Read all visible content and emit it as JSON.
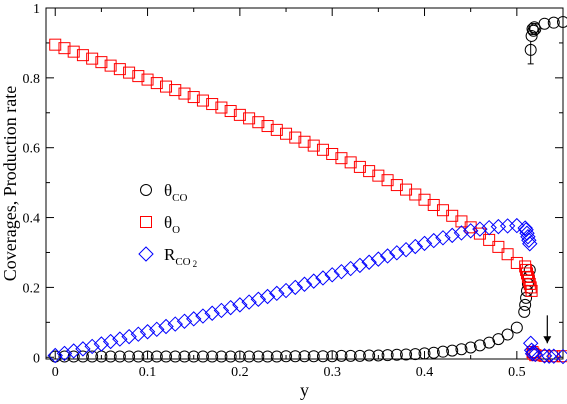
{
  "chart_data": {
    "type": "scatter",
    "xlabel": "y",
    "ylabel": "Coverages, Production rate",
    "xlim": [
      -0.01,
      0.55
    ],
    "ylim": [
      -0.005,
      1.0
    ],
    "x_ticks": [
      "0",
      "0.1",
      "0.2",
      "0.3",
      "0.4",
      "0.5"
    ],
    "x_tick_values": [
      0,
      0.1,
      0.2,
      0.3,
      0.4,
      0.5
    ],
    "y_ticks": [
      "0",
      "0.2",
      "0.4",
      "0.6",
      "0.8",
      "1"
    ],
    "y_tick_values": [
      0,
      0.2,
      0.4,
      0.6,
      0.8,
      1.0
    ],
    "legend": {
      "placement": "center-left",
      "entries": [
        {
          "symbol": "circle",
          "color": "#000000",
          "base": "θ",
          "sub": "CO"
        },
        {
          "symbol": "square",
          "color": "#ff0000",
          "base": "θ",
          "sub": "O"
        },
        {
          "symbol": "diamond",
          "color": "#0000ff",
          "base": "R",
          "sub": "CO 2"
        }
      ]
    },
    "annotation": {
      "type": "arrow-down",
      "x": 0.533,
      "y_from": 0.12,
      "y_to": 0.04
    },
    "series": [
      {
        "symbol": "circle",
        "color": "#000000",
        "points": [
          [
            0.0,
            0.002
          ],
          [
            0.01,
            0.002
          ],
          [
            0.02,
            0.002
          ],
          [
            0.03,
            0.002
          ],
          [
            0.04,
            0.002
          ],
          [
            0.05,
            0.002
          ],
          [
            0.06,
            0.002
          ],
          [
            0.07,
            0.002
          ],
          [
            0.08,
            0.002
          ],
          [
            0.09,
            0.002
          ],
          [
            0.1,
            0.002
          ],
          [
            0.11,
            0.002
          ],
          [
            0.12,
            0.002
          ],
          [
            0.13,
            0.002
          ],
          [
            0.14,
            0.002
          ],
          [
            0.15,
            0.002
          ],
          [
            0.16,
            0.002
          ],
          [
            0.17,
            0.002
          ],
          [
            0.18,
            0.002
          ],
          [
            0.19,
            0.002
          ],
          [
            0.2,
            0.002
          ],
          [
            0.21,
            0.002
          ],
          [
            0.22,
            0.002
          ],
          [
            0.23,
            0.002
          ],
          [
            0.24,
            0.002
          ],
          [
            0.25,
            0.003
          ],
          [
            0.26,
            0.003
          ],
          [
            0.27,
            0.003
          ],
          [
            0.28,
            0.003
          ],
          [
            0.29,
            0.003
          ],
          [
            0.3,
            0.003
          ],
          [
            0.31,
            0.004
          ],
          [
            0.32,
            0.004
          ],
          [
            0.33,
            0.004
          ],
          [
            0.34,
            0.005
          ],
          [
            0.35,
            0.005
          ],
          [
            0.36,
            0.006
          ],
          [
            0.37,
            0.007
          ],
          [
            0.38,
            0.008
          ],
          [
            0.39,
            0.009
          ],
          [
            0.4,
            0.011
          ],
          [
            0.41,
            0.013
          ],
          [
            0.42,
            0.016
          ],
          [
            0.43,
            0.019
          ],
          [
            0.44,
            0.023
          ],
          [
            0.45,
            0.028
          ],
          [
            0.46,
            0.034
          ],
          [
            0.47,
            0.042
          ],
          [
            0.48,
            0.052
          ],
          [
            0.49,
            0.065
          ],
          [
            0.5,
            0.085
          ],
          [
            0.508,
            0.13
          ],
          [
            0.509,
            0.15
          ],
          [
            0.51,
            0.17
          ],
          [
            0.511,
            0.19
          ],
          [
            0.512,
            0.21
          ],
          [
            0.513,
            0.23
          ],
          [
            0.514,
            0.25
          ],
          [
            0.515,
            0.88
          ],
          [
            0.516,
            0.92
          ],
          [
            0.517,
            0.94
          ],
          [
            0.518,
            0.935
          ],
          [
            0.519,
            0.945
          ],
          [
            0.52,
            0.94
          ],
          [
            0.53,
            0.955
          ],
          [
            0.54,
            0.958
          ],
          [
            0.55,
            0.96
          ]
        ],
        "error_bar": {
          "x": 0.515,
          "y": 0.88,
          "low": 0.84,
          "high": 0.905
        }
      },
      {
        "symbol": "square",
        "color": "#ff0000",
        "points": [
          [
            0.0,
            0.895
          ],
          [
            0.01,
            0.885
          ],
          [
            0.02,
            0.875
          ],
          [
            0.03,
            0.865
          ],
          [
            0.04,
            0.855
          ],
          [
            0.05,
            0.845
          ],
          [
            0.06,
            0.835
          ],
          [
            0.07,
            0.825
          ],
          [
            0.08,
            0.815
          ],
          [
            0.09,
            0.805
          ],
          [
            0.1,
            0.795
          ],
          [
            0.11,
            0.785
          ],
          [
            0.12,
            0.775
          ],
          [
            0.13,
            0.765
          ],
          [
            0.14,
            0.755
          ],
          [
            0.15,
            0.745
          ],
          [
            0.16,
            0.735
          ],
          [
            0.17,
            0.725
          ],
          [
            0.18,
            0.715
          ],
          [
            0.19,
            0.705
          ],
          [
            0.2,
            0.694
          ],
          [
            0.21,
            0.684
          ],
          [
            0.22,
            0.673
          ],
          [
            0.23,
            0.662
          ],
          [
            0.24,
            0.651
          ],
          [
            0.25,
            0.64
          ],
          [
            0.26,
            0.629
          ],
          [
            0.27,
            0.617
          ],
          [
            0.28,
            0.606
          ],
          [
            0.29,
            0.594
          ],
          [
            0.3,
            0.582
          ],
          [
            0.31,
            0.57
          ],
          [
            0.32,
            0.558
          ],
          [
            0.33,
            0.545
          ],
          [
            0.34,
            0.533
          ],
          [
            0.35,
            0.52
          ],
          [
            0.36,
            0.507
          ],
          [
            0.37,
            0.493
          ],
          [
            0.38,
            0.48
          ],
          [
            0.39,
            0.466
          ],
          [
            0.4,
            0.451
          ],
          [
            0.41,
            0.436
          ],
          [
            0.42,
            0.421
          ],
          [
            0.43,
            0.405
          ],
          [
            0.44,
            0.389
          ],
          [
            0.45,
            0.372
          ],
          [
            0.46,
            0.354
          ],
          [
            0.47,
            0.336
          ],
          [
            0.48,
            0.316
          ],
          [
            0.49,
            0.295
          ],
          [
            0.5,
            0.27
          ],
          [
            0.509,
            0.26
          ],
          [
            0.51,
            0.25
          ],
          [
            0.511,
            0.24
          ],
          [
            0.512,
            0.23
          ],
          [
            0.513,
            0.22
          ],
          [
            0.514,
            0.21
          ],
          [
            0.515,
            0.2
          ],
          [
            0.516,
            0.19
          ],
          [
            0.517,
            0.015
          ],
          [
            0.518,
            0.01
          ],
          [
            0.52,
            0.006
          ],
          [
            0.53,
            0.004
          ],
          [
            0.54,
            0.003
          ],
          [
            0.55,
            0.003
          ]
        ]
      },
      {
        "symbol": "diamond",
        "color": "#0000ff",
        "points": [
          [
            0.0,
            0.005
          ],
          [
            0.01,
            0.011
          ],
          [
            0.02,
            0.018
          ],
          [
            0.03,
            0.024
          ],
          [
            0.04,
            0.031
          ],
          [
            0.05,
            0.038
          ],
          [
            0.06,
            0.045
          ],
          [
            0.07,
            0.052
          ],
          [
            0.08,
            0.059
          ],
          [
            0.09,
            0.066
          ],
          [
            0.1,
            0.073
          ],
          [
            0.11,
            0.08
          ],
          [
            0.12,
            0.088
          ],
          [
            0.13,
            0.095
          ],
          [
            0.14,
            0.103
          ],
          [
            0.15,
            0.11
          ],
          [
            0.16,
            0.118
          ],
          [
            0.17,
            0.126
          ],
          [
            0.18,
            0.134
          ],
          [
            0.19,
            0.142
          ],
          [
            0.2,
            0.15
          ],
          [
            0.21,
            0.158
          ],
          [
            0.22,
            0.166
          ],
          [
            0.23,
            0.174
          ],
          [
            0.24,
            0.183
          ],
          [
            0.25,
            0.191
          ],
          [
            0.26,
            0.2
          ],
          [
            0.27,
            0.209
          ],
          [
            0.28,
            0.218
          ],
          [
            0.29,
            0.227
          ],
          [
            0.3,
            0.236
          ],
          [
            0.31,
            0.245
          ],
          [
            0.32,
            0.254
          ],
          [
            0.33,
            0.263
          ],
          [
            0.34,
            0.272
          ],
          [
            0.35,
            0.281
          ],
          [
            0.36,
            0.29
          ],
          [
            0.37,
            0.299
          ],
          [
            0.38,
            0.308
          ],
          [
            0.39,
            0.317
          ],
          [
            0.4,
            0.326
          ],
          [
            0.41,
            0.334
          ],
          [
            0.42,
            0.342
          ],
          [
            0.43,
            0.349
          ],
          [
            0.44,
            0.356
          ],
          [
            0.45,
            0.362
          ],
          [
            0.46,
            0.367
          ],
          [
            0.47,
            0.371
          ],
          [
            0.48,
            0.374
          ],
          [
            0.49,
            0.376
          ],
          [
            0.5,
            0.377
          ],
          [
            0.509,
            0.37
          ],
          [
            0.51,
            0.365
          ],
          [
            0.511,
            0.355
          ],
          [
            0.512,
            0.345
          ],
          [
            0.513,
            0.335
          ],
          [
            0.514,
            0.325
          ],
          [
            0.515,
            0.04
          ],
          [
            0.516,
            0.02
          ],
          [
            0.517,
            0.01
          ],
          [
            0.518,
            0.015
          ],
          [
            0.52,
            0.008
          ],
          [
            0.53,
            0.004
          ],
          [
            0.535,
            0.003
          ],
          [
            0.54,
            0.003
          ],
          [
            0.55,
            0.002
          ]
        ]
      }
    ]
  }
}
